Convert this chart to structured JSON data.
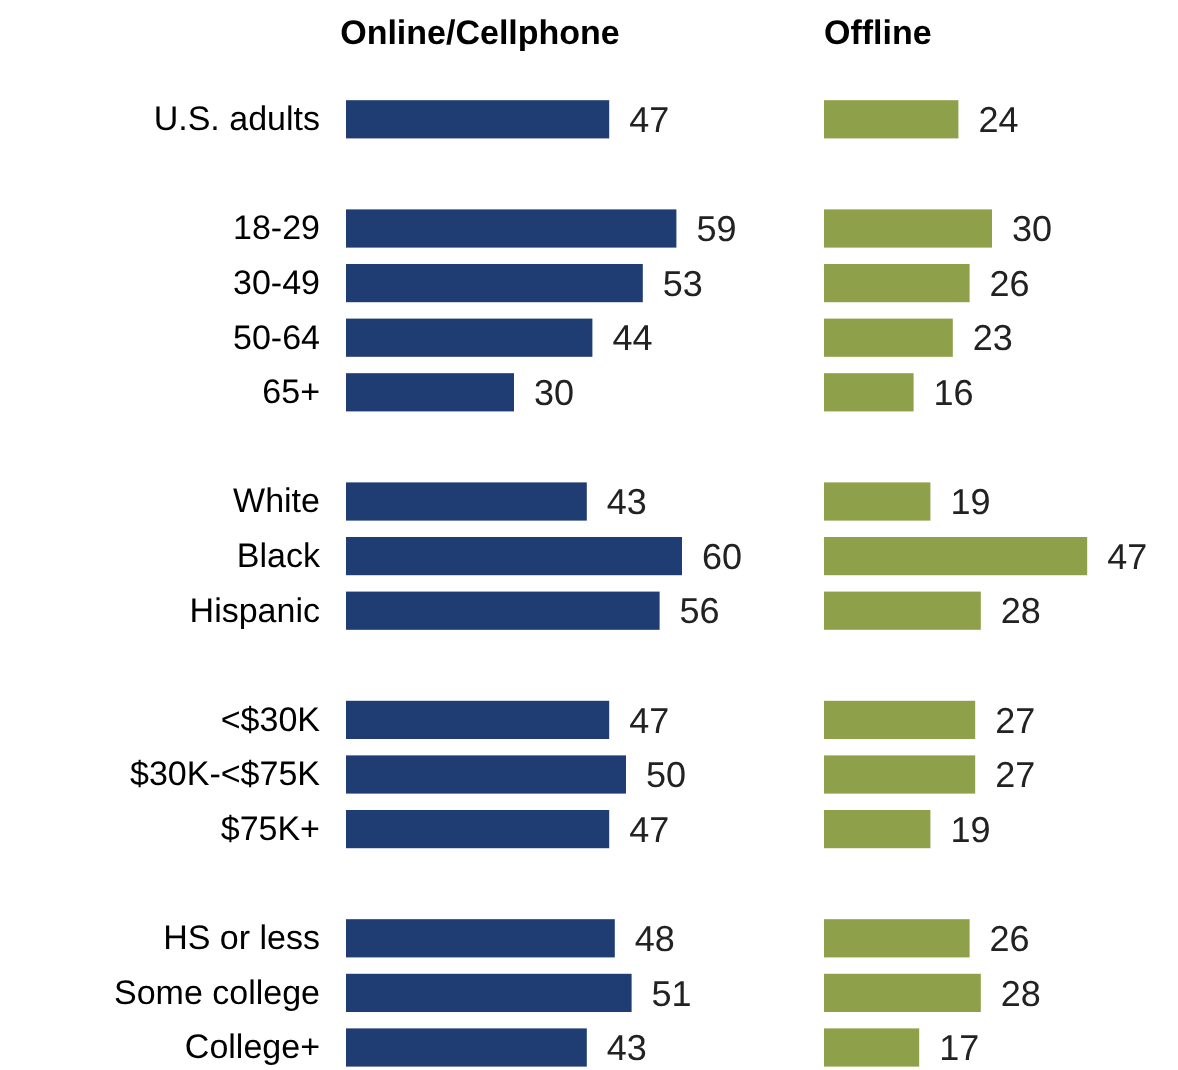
{
  "chart_data": [
    {
      "type": "bar",
      "orientation": "horizontal",
      "title": "Online/Cellphone",
      "categories": [
        "U.S. adults",
        null,
        "18-29",
        "30-49",
        "50-64",
        "65+",
        null,
        "White",
        "Black",
        "Hispanic",
        null,
        "<$30K",
        "$30K-<$75K",
        "$75K+",
        null,
        "HS or less",
        "Some college",
        "College+"
      ],
      "values": [
        47,
        null,
        59,
        53,
        44,
        30,
        null,
        43,
        60,
        56,
        null,
        47,
        50,
        47,
        null,
        48,
        51,
        43
      ],
      "color": "#1f3d73",
      "data_labels": true
    },
    {
      "type": "bar",
      "orientation": "horizontal",
      "title": "Offline",
      "values": [
        24,
        null,
        30,
        26,
        23,
        16,
        null,
        19,
        47,
        28,
        null,
        27,
        27,
        19,
        null,
        26,
        28,
        17
      ],
      "color": "#8fa04a",
      "data_labels": true,
      "tick_labels": false
    }
  ]
}
